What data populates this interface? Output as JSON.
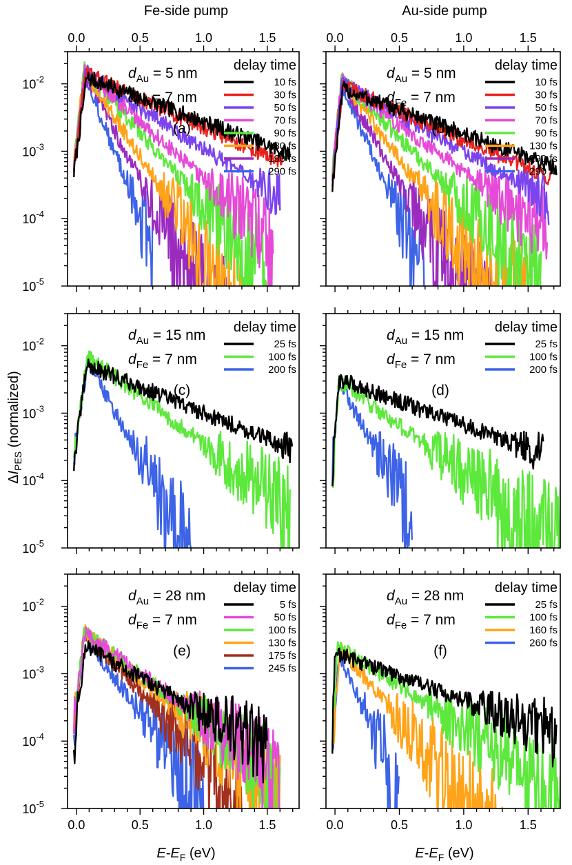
{
  "figure": {
    "col_titles": [
      "Fe-side pump",
      "Au-side pump"
    ],
    "ylabel": {
      "pre": "Δ",
      "i": "I",
      "sub": "PES",
      "post": " (normalized)"
    },
    "xlabel": {
      "e1": "E",
      "dash": "-",
      "e2": "E",
      "sub": "F",
      "post": " (eV)"
    },
    "legend_title": "delay time",
    "x_ticks": [
      "0.0",
      "0.5",
      "1.0",
      "1.5"
    ],
    "y_tick_base": "10",
    "y_tick_exps": [
      "-2",
      "-3",
      "-4",
      "-5"
    ]
  },
  "colors": {
    "black": "#000000",
    "red": "#e8231e",
    "purple": "#7b44ee",
    "magenta": "#e64bd8",
    "green": "#5de83c",
    "orange": "#ffa319",
    "violet": "#9b2bbf",
    "blue": "#3d63e6",
    "brown": "#a3301e"
  },
  "chart_data": [
    {
      "type": "line",
      "panel_label": "(a)",
      "pump": "Fe-side pump",
      "d_au": "5 nm",
      "d_fe": "7 nm",
      "xlim": [
        -0.07,
        1.75
      ],
      "ylim": [
        1e-05,
        0.03
      ],
      "yscale": "log",
      "series": [
        {
          "name": "10 fs",
          "color": "#000000",
          "peak": 0.012,
          "pk": 0.08,
          "tau": 0.6,
          "tail": 0.0004,
          "cut": 1.68
        },
        {
          "name": "30 fs",
          "color": "#e8231e",
          "peak": 0.014,
          "pk": 0.07,
          "tau": 0.5,
          "tail": 0.00025,
          "cut": 1.62
        },
        {
          "name": "50 fs",
          "color": "#7b44ee",
          "peak": 0.015,
          "pk": 0.07,
          "tau": 0.35,
          "tail": 8e-05,
          "cut": 1.6
        },
        {
          "name": "70 fs",
          "color": "#e64bd8",
          "peak": 0.016,
          "pk": 0.06,
          "tau": 0.25,
          "tail": 4e-05,
          "cut": 1.55
        },
        {
          "name": "90 fs",
          "color": "#5de83c",
          "peak": 0.017,
          "pk": 0.06,
          "tau": 0.2,
          "tail": 3e-05,
          "cut": 1.5
        },
        {
          "name": "130 fs",
          "color": "#ffa319",
          "peak": 0.016,
          "pk": 0.06,
          "tau": 0.15,
          "tail": 2e-05,
          "cut": 1.4
        },
        {
          "name": "190 fs",
          "color": "#9b2bbf",
          "peak": 0.015,
          "pk": 0.06,
          "tau": 0.12,
          "tail": 1.5e-05,
          "cut": 1.2
        },
        {
          "name": "290 fs",
          "color": "#3d63e6",
          "peak": 0.014,
          "pk": 0.06,
          "tau": 0.09,
          "tail": 1e-05,
          "cut": 0.6
        }
      ]
    },
    {
      "type": "line",
      "panel_label": "(b)",
      "pump": "Au-side pump",
      "d_au": "5 nm",
      "d_fe": "7 nm",
      "xlim": [
        -0.07,
        1.75
      ],
      "ylim": [
        1e-05,
        0.03
      ],
      "yscale": "log",
      "series": [
        {
          "name": "10 fs",
          "color": "#000000",
          "peak": 0.008,
          "pk": 0.06,
          "tau": 0.6,
          "tail": 0.0004,
          "cut": 1.72
        },
        {
          "name": "30 fs",
          "color": "#e8231e",
          "peak": 0.009,
          "pk": 0.06,
          "tau": 0.5,
          "tail": 0.0003,
          "cut": 1.68
        },
        {
          "name": "50 fs",
          "color": "#7b44ee",
          "peak": 0.01,
          "pk": 0.05,
          "tau": 0.4,
          "tail": 0.00015,
          "cut": 1.66
        },
        {
          "name": "70 fs",
          "color": "#e64bd8",
          "peak": 0.011,
          "pk": 0.05,
          "tau": 0.3,
          "tail": 0.0001,
          "cut": 1.65
        },
        {
          "name": "90 fs",
          "color": "#5de83c",
          "peak": 0.012,
          "pk": 0.05,
          "tau": 0.22,
          "tail": 5e-05,
          "cut": 1.6
        },
        {
          "name": "130 fs",
          "color": "#ffa319",
          "peak": 0.012,
          "pk": 0.05,
          "tau": 0.16,
          "tail": 4e-05,
          "cut": 1.5
        },
        {
          "name": "190 fs",
          "color": "#9b2bbf",
          "peak": 0.011,
          "pk": 0.05,
          "tau": 0.13,
          "tail": 2e-05,
          "cut": 1.3
        },
        {
          "name": "290 fs",
          "color": "#3d63e6",
          "peak": 0.01,
          "pk": 0.05,
          "tau": 0.1,
          "tail": 1e-05,
          "cut": 0.7
        }
      ]
    },
    {
      "type": "line",
      "panel_label": "(c)",
      "pump": "Fe-side pump",
      "d_au": "15 nm",
      "d_fe": " 7 nm",
      "xlim": [
        -0.07,
        1.75
      ],
      "ylim": [
        1e-05,
        0.03
      ],
      "yscale": "log",
      "series": [
        {
          "name": "25 fs",
          "color": "#000000",
          "peak": 0.005,
          "pk": 0.08,
          "tau": 0.55,
          "tail": 0.0002,
          "cut": 1.7
        },
        {
          "name": "100 fs",
          "color": "#5de83c",
          "peak": 0.007,
          "pk": 0.09,
          "tau": 0.3,
          "tail": 5e-05,
          "cut": 1.68
        },
        {
          "name": "200 fs",
          "color": "#3d63e6",
          "peak": 0.006,
          "pk": 0.09,
          "tau": 0.12,
          "tail": 2e-05,
          "cut": 0.9
        }
      ]
    },
    {
      "type": "line",
      "panel_label": "(d)",
      "pump": "Au-side pump",
      "d_au": "15 nm",
      "d_fe": " 7 nm",
      "xlim": [
        -0.07,
        1.75
      ],
      "ylim": [
        1e-05,
        0.03
      ],
      "yscale": "log",
      "series": [
        {
          "name": "25 fs",
          "color": "#000000",
          "peak": 0.003,
          "pk": 0.03,
          "tau": 0.6,
          "tail": 0.0002,
          "cut": 1.62
        },
        {
          "name": "100 fs",
          "color": "#5de83c",
          "peak": 0.003,
          "pk": 0.03,
          "tau": 0.3,
          "tail": 4e-05,
          "cut": 1.75
        },
        {
          "name": "200 fs",
          "color": "#3d63e6",
          "peak": 0.003,
          "pk": 0.03,
          "tau": 0.12,
          "tail": 1e-05,
          "cut": 0.6
        }
      ]
    },
    {
      "type": "line",
      "panel_label": "(e)",
      "pump": "Fe-side pump",
      "d_au": "28 nm",
      "d_fe": " 7 nm",
      "xlim": [
        -0.07,
        1.75
      ],
      "ylim": [
        1e-05,
        0.03
      ],
      "yscale": "log",
      "series": [
        {
          "name": "5 fs",
          "color": "#000000",
          "peak": 0.0025,
          "pk": 0.07,
          "tau": 0.4,
          "tail": 4e-05,
          "cut": 1.5
        },
        {
          "name": "50 fs",
          "color": "#e64bd8",
          "peak": 0.004,
          "pk": 0.06,
          "tau": 0.32,
          "tail": 3e-05,
          "cut": 1.6
        },
        {
          "name": "100 fs",
          "color": "#5de83c",
          "peak": 0.0042,
          "pk": 0.06,
          "tau": 0.3,
          "tail": 3e-05,
          "cut": 1.6
        },
        {
          "name": "130 fs",
          "color": "#ffa319",
          "peak": 0.0042,
          "pk": 0.06,
          "tau": 0.27,
          "tail": 2e-05,
          "cut": 1.6
        },
        {
          "name": "175 fs",
          "color": "#a3301e",
          "peak": 0.004,
          "pk": 0.06,
          "tau": 0.22,
          "tail": 2e-05,
          "cut": 1.3
        },
        {
          "name": "245 fs",
          "color": "#3d63e6",
          "peak": 0.0035,
          "pk": 0.06,
          "tau": 0.17,
          "tail": 1.5e-05,
          "cut": 1.0
        }
      ]
    },
    {
      "type": "line",
      "panel_label": "(f)",
      "pump": "Au-side pump",
      "d_au": "28 nm",
      "d_fe": "  7 nm",
      "xlim": [
        -0.07,
        1.75
      ],
      "ylim": [
        1e-05,
        0.03
      ],
      "yscale": "log",
      "series": [
        {
          "name": "25 fs",
          "color": "#000000",
          "peak": 0.002,
          "pk": 0.0,
          "tau": 0.6,
          "tail": 8e-05,
          "cut": 1.72
        },
        {
          "name": "100 fs",
          "color": "#5de83c",
          "peak": 0.0025,
          "pk": 0.02,
          "tau": 0.35,
          "tail": 3e-05,
          "cut": 1.75
        },
        {
          "name": "160 fs",
          "color": "#ffa319",
          "peak": 0.0025,
          "pk": 0.04,
          "tau": 0.18,
          "tail": 2e-05,
          "cut": 1.3
        },
        {
          "name": "260 fs",
          "color": "#3d63e6",
          "peak": 0.002,
          "pk": 0.03,
          "tau": 0.1,
          "tail": 1e-05,
          "cut": 0.5
        }
      ]
    }
  ]
}
